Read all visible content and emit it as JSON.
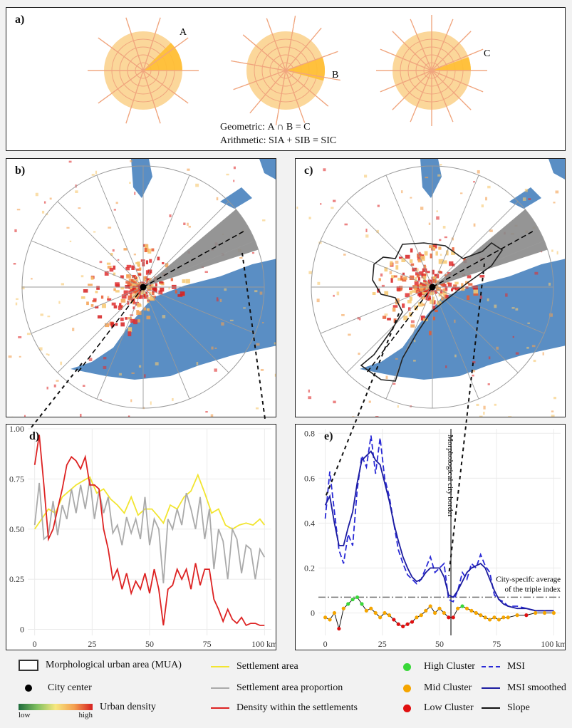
{
  "panel_a": {
    "label": "a)",
    "sector_labels": {
      "a": "A",
      "b": "B",
      "c": "C"
    },
    "geometric_label": "Geometric:",
    "geometric_formula": "A ∩ B  =  C",
    "arithmetic_label": "Arithmetic:",
    "arithmetic_formula": "SIA + SIB = SIC"
  },
  "panel_b": {
    "label": "b)"
  },
  "panel_c": {
    "label": "c)"
  },
  "chart_data": [
    {
      "id": "d",
      "label": "d)",
      "type": "line",
      "xlabel": "km",
      "xticks": [
        0,
        25,
        50,
        75,
        100
      ],
      "xtick_labels": [
        "0",
        "25",
        "50",
        "75",
        "100 km"
      ],
      "yticks": [
        0,
        0.25,
        0.5,
        0.75,
        1.0
      ],
      "ytick_labels": [
        "0",
        "0.25",
        "0.50",
        "0.75",
        "1.00"
      ],
      "xlim": [
        -3,
        103
      ],
      "ylim": [
        -0.03,
        1.0
      ],
      "series": [
        {
          "name": "Settlement area",
          "color": "#f2e530",
          "x": [
            0,
            3,
            6,
            9,
            12,
            15,
            18,
            21,
            24,
            27,
            30,
            33,
            36,
            39,
            42,
            45,
            48,
            51,
            54,
            56,
            59,
            62,
            65,
            68,
            71,
            74,
            77,
            80,
            83,
            86,
            89,
            92,
            95,
            98,
            100
          ],
          "y": [
            0.5,
            0.55,
            0.6,
            0.58,
            0.66,
            0.69,
            0.72,
            0.74,
            0.76,
            0.68,
            0.7,
            0.65,
            0.62,
            0.58,
            0.66,
            0.57,
            0.6,
            0.6,
            0.56,
            0.53,
            0.62,
            0.6,
            0.66,
            0.69,
            0.77,
            0.68,
            0.58,
            0.6,
            0.52,
            0.5,
            0.52,
            0.53,
            0.52,
            0.55,
            0.52
          ]
        },
        {
          "name": "Settlement area proportion",
          "color": "#aaaaaa",
          "x": [
            0,
            2,
            4,
            6,
            8,
            10,
            12,
            14,
            16,
            18,
            20,
            22,
            24,
            26,
            28,
            30,
            32,
            34,
            36,
            38,
            40,
            42,
            44,
            46,
            48,
            50,
            52,
            54,
            56,
            58,
            60,
            62,
            64,
            66,
            68,
            70,
            72,
            74,
            76,
            78,
            80,
            82,
            84,
            86,
            88,
            90,
            92,
            94,
            96,
            98,
            100
          ],
          "y": [
            0.52,
            0.73,
            0.45,
            0.47,
            0.64,
            0.47,
            0.62,
            0.55,
            0.7,
            0.58,
            0.72,
            0.6,
            0.75,
            0.55,
            0.69,
            0.58,
            0.66,
            0.48,
            0.52,
            0.42,
            0.56,
            0.48,
            0.55,
            0.45,
            0.66,
            0.42,
            0.55,
            0.5,
            0.23,
            0.55,
            0.5,
            0.6,
            0.52,
            0.68,
            0.6,
            0.5,
            0.66,
            0.45,
            0.6,
            0.3,
            0.5,
            0.44,
            0.25,
            0.5,
            0.45,
            0.28,
            0.42,
            0.4,
            0.25,
            0.4,
            0.36
          ]
        },
        {
          "name": "Density within the settlements",
          "color": "#dd2222",
          "x": [
            0,
            2,
            4,
            6,
            8,
            10,
            12,
            14,
            16,
            18,
            20,
            22,
            24,
            26,
            28,
            30,
            32,
            34,
            36,
            38,
            40,
            42,
            44,
            46,
            48,
            50,
            52,
            54,
            56,
            58,
            60,
            62,
            64,
            66,
            68,
            70,
            72,
            74,
            76,
            78,
            80,
            82,
            84,
            86,
            88,
            90,
            92,
            94,
            96,
            98,
            100
          ],
          "y": [
            0.82,
            0.97,
            0.72,
            0.45,
            0.5,
            0.6,
            0.7,
            0.82,
            0.86,
            0.84,
            0.8,
            0.86,
            0.72,
            0.72,
            0.7,
            0.5,
            0.4,
            0.25,
            0.3,
            0.2,
            0.28,
            0.18,
            0.24,
            0.2,
            0.28,
            0.18,
            0.3,
            0.2,
            0.02,
            0.2,
            0.22,
            0.3,
            0.25,
            0.3,
            0.2,
            0.33,
            0.22,
            0.3,
            0.3,
            0.15,
            0.1,
            0.04,
            0.1,
            0.05,
            0.03,
            0.06,
            0.02,
            0.03,
            0.03,
            0.02,
            0.02
          ]
        }
      ]
    },
    {
      "id": "e",
      "label": "e)",
      "type": "line",
      "xlabel": "km",
      "xticks": [
        0,
        25,
        50,
        75,
        100
      ],
      "xtick_labels": [
        "0",
        "25",
        "50",
        "75",
        "100 km"
      ],
      "yticks": [
        0,
        0.2,
        0.4,
        0.6,
        0.8
      ],
      "ytick_labels": [
        "0",
        "0.2",
        "0.4",
        "0.6",
        "0.8"
      ],
      "xlim": [
        -3,
        103
      ],
      "ylim": [
        -0.1,
        0.82
      ],
      "vline": {
        "x": 55,
        "label": "Morphological city border"
      },
      "hline": {
        "y": 0.07,
        "label_1": "City-specifc average",
        "label_2": "of the triple index"
      },
      "series": [
        {
          "name": "MSI",
          "color": "#2a2ad6",
          "dashed": true,
          "x": [
            0,
            2,
            4,
            6,
            8,
            10,
            12,
            14,
            16,
            18,
            20,
            22,
            24,
            26,
            28,
            30,
            32,
            34,
            36,
            38,
            40,
            42,
            44,
            46,
            48,
            50,
            52,
            54,
            56,
            58,
            60,
            62,
            64,
            66,
            68,
            70,
            72,
            74,
            76,
            78,
            80,
            84,
            88,
            92,
            96,
            100
          ],
          "y": [
            0.42,
            0.63,
            0.45,
            0.28,
            0.22,
            0.35,
            0.3,
            0.55,
            0.7,
            0.65,
            0.79,
            0.62,
            0.78,
            0.6,
            0.52,
            0.4,
            0.28,
            0.22,
            0.17,
            0.15,
            0.13,
            0.15,
            0.2,
            0.25,
            0.18,
            0.2,
            0.22,
            0.06,
            0.05,
            0.1,
            0.18,
            0.15,
            0.22,
            0.2,
            0.26,
            0.21,
            0.18,
            0.08,
            0.06,
            0.05,
            0.03,
            0.03,
            0.02,
            0.01,
            0.01,
            0.01
          ]
        },
        {
          "name": "MSI smoothed",
          "color": "#1c1ca0",
          "dashed": false,
          "x": [
            0,
            2,
            4,
            6,
            8,
            10,
            12,
            14,
            16,
            18,
            20,
            22,
            24,
            26,
            28,
            30,
            32,
            34,
            36,
            38,
            40,
            42,
            44,
            46,
            48,
            50,
            52,
            54,
            56,
            58,
            60,
            62,
            64,
            66,
            68,
            70,
            72,
            74,
            76,
            78,
            80,
            84,
            88,
            92,
            96,
            100
          ],
          "y": [
            0.48,
            0.52,
            0.4,
            0.3,
            0.3,
            0.38,
            0.45,
            0.58,
            0.68,
            0.7,
            0.72,
            0.68,
            0.66,
            0.58,
            0.5,
            0.4,
            0.32,
            0.25,
            0.2,
            0.16,
            0.14,
            0.15,
            0.18,
            0.2,
            0.2,
            0.2,
            0.16,
            0.08,
            0.07,
            0.1,
            0.14,
            0.18,
            0.2,
            0.21,
            0.22,
            0.2,
            0.15,
            0.1,
            0.06,
            0.04,
            0.03,
            0.02,
            0.02,
            0.01,
            0.01,
            0.01
          ]
        },
        {
          "name": "Triple index",
          "color": "#f5a500",
          "x": [
            0,
            2,
            4,
            6,
            8,
            10,
            12,
            14,
            16,
            18,
            20,
            22,
            24,
            26,
            28,
            30,
            32,
            34,
            36,
            38,
            40,
            42,
            44,
            46,
            48,
            50,
            52,
            54,
            56,
            58,
            60,
            62,
            64,
            66,
            68,
            70,
            72,
            74,
            76,
            78,
            80,
            84,
            88,
            92,
            96,
            100
          ],
          "y": [
            -0.02,
            -0.03,
            0.0,
            -0.07,
            0.02,
            0.04,
            0.06,
            0.07,
            0.04,
            0.01,
            0.02,
            0.0,
            -0.02,
            0.0,
            -0.01,
            -0.03,
            -0.05,
            -0.06,
            -0.05,
            -0.04,
            -0.02,
            -0.01,
            0.01,
            0.03,
            0.0,
            0.02,
            0.0,
            -0.02,
            -0.02,
            0.02,
            0.03,
            0.02,
            0.01,
            0.0,
            -0.01,
            -0.02,
            -0.03,
            -0.02,
            -0.03,
            -0.02,
            -0.02,
            -0.01,
            -0.01,
            0.0,
            0.0,
            0.0
          ],
          "clusters": [
            "mid",
            "mid",
            "mid",
            "low",
            "mid",
            "high",
            "high",
            "high",
            "high",
            "mid",
            "mid",
            "mid",
            "mid",
            "mid",
            "mid",
            "low",
            "low",
            "low",
            "low",
            "low",
            "mid",
            "mid",
            "mid",
            "mid",
            "mid",
            "mid",
            "mid",
            "low",
            "low",
            "mid",
            "high",
            "mid",
            "mid",
            "mid",
            "mid",
            "mid",
            "mid",
            "mid",
            "mid",
            "mid",
            "mid",
            "mid",
            "low",
            "mid",
            "mid",
            "mid"
          ]
        }
      ]
    }
  ],
  "legend": {
    "mua": "Morphological urban area (MUA)",
    "city_center": "City center",
    "urban_density": "Urban density",
    "density_low": "low",
    "density_high": "high",
    "settlement_area": "Settlement area",
    "settlement_area_proportion": "Settlement area proportion",
    "density_within": "Density within the settlements",
    "high_cluster": "High Cluster",
    "mid_cluster": "Mid Cluster",
    "low_cluster": "Low Cluster",
    "msi": "MSI",
    "msi_smoothed": "MSI smoothed",
    "slope": "Slope"
  },
  "colors": {
    "disc_fill": "#fbd79a",
    "disc_line": "#f0a57e",
    "sector_fill": "#ffbf33",
    "lake": "#5a8ec4",
    "wedge": "#8a8a8a",
    "high": "#39d839",
    "mid": "#f5a500",
    "low": "#e01010"
  }
}
